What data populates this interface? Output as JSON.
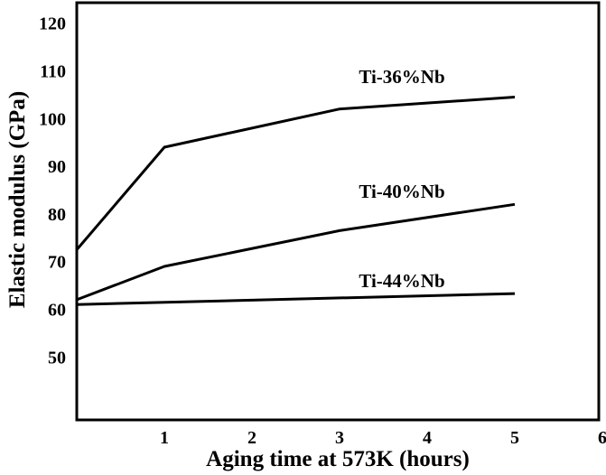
{
  "chart_data": {
    "type": "line",
    "title": "",
    "xlabel": "Aging time at 573K (hours)",
    "ylabel": "Elastic modulus (GPa)",
    "xlim": [
      0,
      6
    ],
    "ylim": [
      40,
      120
    ],
    "x_ticks": [
      1,
      2,
      3,
      4,
      5,
      6
    ],
    "y_ticks": [
      50,
      60,
      70,
      80,
      90,
      100,
      110,
      120
    ],
    "grid": false,
    "legend": "none (series labeled directly above lines)",
    "series": [
      {
        "name": "Ti-36%Nb",
        "x": [
          0,
          1,
          3,
          5
        ],
        "y": [
          72.5,
          94,
          102,
          104.5
        ]
      },
      {
        "name": "Ti-40%Nb",
        "x": [
          0,
          1,
          3,
          5
        ],
        "y": [
          62,
          69,
          76.5,
          82
        ]
      },
      {
        "name": "Ti-44%Nb",
        "x": [
          0,
          5
        ],
        "y": [
          61,
          63.3
        ]
      }
    ],
    "line_color": "#000000"
  }
}
